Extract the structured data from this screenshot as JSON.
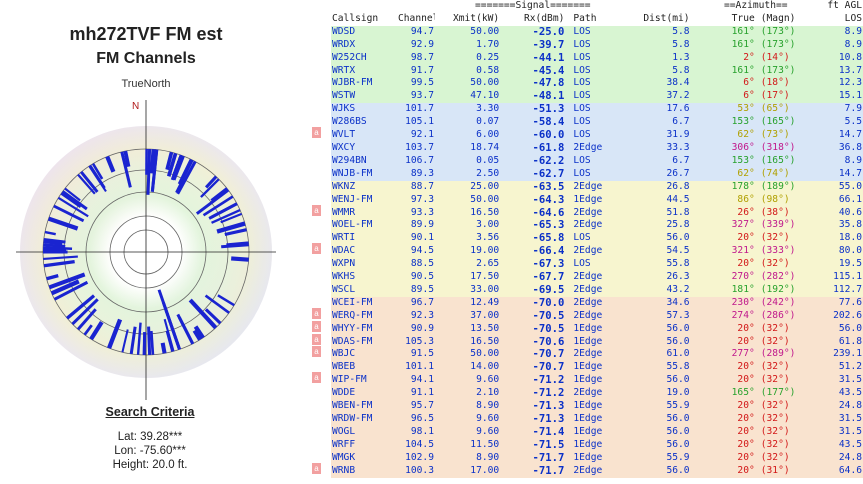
{
  "header": {
    "title": "mh272TVF FM est",
    "subtitle": "FM Channels",
    "plot_caption": "TrueNorth",
    "north_label": "N"
  },
  "search_criteria": {
    "title": "Search Criteria",
    "lat": "Lat: 39.28***",
    "lon": "Lon: -75.60***",
    "height": "Height: 20.0 ft."
  },
  "colors": {
    "call_blue": "#0b31c8",
    "band_green": "#d8f5d2",
    "band_blue": "#d8e6f7",
    "band_yellow": "#f7f5cf",
    "band_orange": "#f9e3cf",
    "marker_red": "#f2a0a0",
    "spoke_blue": "#1a24d0"
  },
  "table": {
    "group_headers": {
      "signal": "=======Signal=======",
      "azimuth": "==Azimuth==",
      "ftagl": "ft AGL"
    },
    "columns": {
      "callsign": "Callsign",
      "channel": "Channel",
      "xmit": "Xmit(kW)",
      "rx": "Rx(dBm)",
      "path": "Path",
      "dist": "Dist(mi)",
      "true": "True",
      "magn": "(Magn)",
      "los": "LOS"
    },
    "rows": [
      {
        "callsign": "WDSD",
        "channel": "94.7",
        "xmit": "50.00",
        "rx": "-25.0",
        "path": "LOS",
        "dist": "5.8",
        "true": "161°",
        "magn": "(173°)",
        "los": "8.9",
        "band": "green",
        "az": "green",
        "marker": false
      },
      {
        "callsign": "WRDX",
        "channel": "92.9",
        "xmit": "1.70",
        "rx": "-39.7",
        "path": "LOS",
        "dist": "5.8",
        "true": "161°",
        "magn": "(173°)",
        "los": "8.9",
        "band": "green",
        "az": "green",
        "marker": false
      },
      {
        "callsign": "W252CH",
        "channel": "98.7",
        "xmit": "0.25",
        "rx": "-44.1",
        "path": "LOS",
        "dist": "1.3",
        "true": "2°",
        "magn": "(14°)",
        "los": "10.8",
        "band": "green",
        "az": "red",
        "marker": false
      },
      {
        "callsign": "WRTX",
        "channel": "91.7",
        "xmit": "0.58",
        "rx": "-45.4",
        "path": "LOS",
        "dist": "5.8",
        "true": "161°",
        "magn": "(173°)",
        "los": "13.7",
        "band": "green",
        "az": "green",
        "marker": false
      },
      {
        "callsign": "WJBR-FM",
        "channel": "99.5",
        "xmit": "50.00",
        "rx": "-47.8",
        "path": "LOS",
        "dist": "38.4",
        "true": "6°",
        "magn": "(18°)",
        "los": "12.3",
        "band": "green",
        "az": "red",
        "marker": false
      },
      {
        "callsign": "WSTW",
        "channel": "93.7",
        "xmit": "47.10",
        "rx": "-48.1",
        "path": "LOS",
        "dist": "37.2",
        "true": "6°",
        "magn": "(17°)",
        "los": "15.1",
        "band": "green",
        "az": "red",
        "marker": false
      },
      {
        "callsign": "WJKS",
        "channel": "101.7",
        "xmit": "3.30",
        "rx": "-51.3",
        "path": "LOS",
        "dist": "17.6",
        "true": "53°",
        "magn": "(65°)",
        "los": "7.9",
        "band": "blue",
        "az": "yellow",
        "marker": false
      },
      {
        "callsign": "W286BS",
        "channel": "105.1",
        "xmit": "0.07",
        "rx": "-58.4",
        "path": "LOS",
        "dist": "6.7",
        "true": "153°",
        "magn": "(165°)",
        "los": "5.5",
        "band": "blue",
        "az": "green",
        "marker": false
      },
      {
        "callsign": "WVLT",
        "channel": "92.1",
        "xmit": "6.00",
        "rx": "-60.0",
        "path": "LOS",
        "dist": "31.9",
        "true": "62°",
        "magn": "(73°)",
        "los": "14.7",
        "band": "blue",
        "az": "yellow",
        "marker": true
      },
      {
        "callsign": "WXCY",
        "channel": "103.7",
        "xmit": "18.74",
        "rx": "-61.8",
        "path": "2Edge",
        "dist": "33.3",
        "true": "306°",
        "magn": "(318°)",
        "los": "36.8",
        "band": "blue",
        "az": "magenta",
        "marker": false
      },
      {
        "callsign": "W294BN",
        "channel": "106.7",
        "xmit": "0.05",
        "rx": "-62.2",
        "path": "LOS",
        "dist": "6.7",
        "true": "153°",
        "magn": "(165°)",
        "los": "8.9",
        "band": "blue",
        "az": "green",
        "marker": false
      },
      {
        "callsign": "WNJB-FM",
        "channel": "89.3",
        "xmit": "2.50",
        "rx": "-62.7",
        "path": "LOS",
        "dist": "26.7",
        "true": "62°",
        "magn": "(74°)",
        "los": "14.7",
        "band": "blue",
        "az": "yellow",
        "marker": false
      },
      {
        "callsign": "WKNZ",
        "channel": "88.7",
        "xmit": "25.00",
        "rx": "-63.5",
        "path": "2Edge",
        "dist": "26.8",
        "true": "178°",
        "magn": "(189°)",
        "los": "55.0",
        "band": "yellow",
        "az": "green",
        "marker": false
      },
      {
        "callsign": "WENJ-FM",
        "channel": "97.3",
        "xmit": "50.00",
        "rx": "-64.3",
        "path": "1Edge",
        "dist": "44.5",
        "true": "86°",
        "magn": "(98°)",
        "los": "66.1",
        "band": "yellow",
        "az": "yellow",
        "marker": false
      },
      {
        "callsign": "WMMR",
        "channel": "93.3",
        "xmit": "16.50",
        "rx": "-64.6",
        "path": "2Edge",
        "dist": "51.8",
        "true": "26°",
        "magn": "(38°)",
        "los": "40.6",
        "band": "yellow",
        "az": "red",
        "marker": true
      },
      {
        "callsign": "WOEL-FM",
        "channel": "89.9",
        "xmit": "3.00",
        "rx": "-65.3",
        "path": "2Edge",
        "dist": "25.8",
        "true": "327°",
        "magn": "(339°)",
        "los": "35.8",
        "band": "yellow",
        "az": "magenta",
        "marker": false
      },
      {
        "callsign": "WRTI",
        "channel": "90.1",
        "xmit": "3.56",
        "rx": "-65.8",
        "path": "LOS",
        "dist": "56.0",
        "true": "20°",
        "magn": "(32°)",
        "los": "18.0",
        "band": "yellow",
        "az": "red",
        "marker": false
      },
      {
        "callsign": "WDAC",
        "channel": "94.5",
        "xmit": "19.00",
        "rx": "-66.4",
        "path": "2Edge",
        "dist": "54.5",
        "true": "321°",
        "magn": "(333°)",
        "los": "80.0",
        "band": "yellow",
        "az": "magenta",
        "marker": true
      },
      {
        "callsign": "WXPN",
        "channel": "88.5",
        "xmit": "2.65",
        "rx": "-67.3",
        "path": "LOS",
        "dist": "55.8",
        "true": "20°",
        "magn": "(32°)",
        "los": "19.5",
        "band": "yellow",
        "az": "red",
        "marker": false
      },
      {
        "callsign": "WKHS",
        "channel": "90.5",
        "xmit": "17.50",
        "rx": "-67.7",
        "path": "2Edge",
        "dist": "26.3",
        "true": "270°",
        "magn": "(282°)",
        "los": "115.1",
        "band": "yellow",
        "az": "magenta",
        "marker": false
      },
      {
        "callsign": "WSCL",
        "channel": "89.5",
        "xmit": "33.00",
        "rx": "-69.5",
        "path": "2Edge",
        "dist": "43.2",
        "true": "181°",
        "magn": "(192°)",
        "los": "112.7",
        "band": "yellow",
        "az": "green",
        "marker": false
      },
      {
        "callsign": "WCEI-FM",
        "channel": "96.7",
        "xmit": "12.49",
        "rx": "-70.0",
        "path": "2Edge",
        "dist": "34.6",
        "true": "230°",
        "magn": "(242°)",
        "los": "77.6",
        "band": "orange",
        "az": "magenta",
        "marker": false
      },
      {
        "callsign": "WERQ-FM",
        "channel": "92.3",
        "xmit": "37.00",
        "rx": "-70.5",
        "path": "2Edge",
        "dist": "57.3",
        "true": "274°",
        "magn": "(286°)",
        "los": "202.6",
        "band": "orange",
        "az": "magenta",
        "marker": true
      },
      {
        "callsign": "WHYY-FM",
        "channel": "90.9",
        "xmit": "13.50",
        "rx": "-70.5",
        "path": "1Edge",
        "dist": "56.0",
        "true": "20°",
        "magn": "(32°)",
        "los": "56.0",
        "band": "orange",
        "az": "red",
        "marker": true
      },
      {
        "callsign": "WDAS-FM",
        "channel": "105.3",
        "xmit": "16.50",
        "rx": "-70.6",
        "path": "1Edge",
        "dist": "56.0",
        "true": "20°",
        "magn": "(32°)",
        "los": "61.8",
        "band": "orange",
        "az": "red",
        "marker": true
      },
      {
        "callsign": "WBJC",
        "channel": "91.5",
        "xmit": "50.00",
        "rx": "-70.7",
        "path": "2Edge",
        "dist": "61.0",
        "true": "277°",
        "magn": "(289°)",
        "los": "239.1",
        "band": "orange",
        "az": "magenta",
        "marker": true
      },
      {
        "callsign": "WBEB",
        "channel": "101.1",
        "xmit": "14.00",
        "rx": "-70.7",
        "path": "1Edge",
        "dist": "55.8",
        "true": "20°",
        "magn": "(32°)",
        "los": "51.2",
        "band": "orange",
        "az": "red",
        "marker": false
      },
      {
        "callsign": "WIP-FM",
        "channel": "94.1",
        "xmit": "9.60",
        "rx": "-71.2",
        "path": "1Edge",
        "dist": "56.0",
        "true": "20°",
        "magn": "(32°)",
        "los": "31.5",
        "band": "orange",
        "az": "red",
        "marker": true
      },
      {
        "callsign": "WDDE",
        "channel": "91.1",
        "xmit": "2.10",
        "rx": "-71.2",
        "path": "2Edge",
        "dist": "19.0",
        "true": "165°",
        "magn": "(177°)",
        "los": "43.5",
        "band": "orange",
        "az": "green",
        "marker": false
      },
      {
        "callsign": "WBEN-FM",
        "channel": "95.7",
        "xmit": "8.90",
        "rx": "-71.3",
        "path": "1Edge",
        "dist": "55.9",
        "true": "20°",
        "magn": "(32°)",
        "los": "24.8",
        "band": "orange",
        "az": "red",
        "marker": false
      },
      {
        "callsign": "WRDW-FM",
        "channel": "96.5",
        "xmit": "9.60",
        "rx": "-71.3",
        "path": "1Edge",
        "dist": "56.0",
        "true": "20°",
        "magn": "(32°)",
        "los": "31.5",
        "band": "orange",
        "az": "red",
        "marker": false
      },
      {
        "callsign": "WOGL",
        "channel": "98.1",
        "xmit": "9.60",
        "rx": "-71.4",
        "path": "1Edge",
        "dist": "56.0",
        "true": "20°",
        "magn": "(32°)",
        "los": "31.5",
        "band": "orange",
        "az": "red",
        "marker": false
      },
      {
        "callsign": "WRFF",
        "channel": "104.5",
        "xmit": "11.50",
        "rx": "-71.5",
        "path": "1Edge",
        "dist": "56.0",
        "true": "20°",
        "magn": "(32°)",
        "los": "43.5",
        "band": "orange",
        "az": "red",
        "marker": false
      },
      {
        "callsign": "WMGK",
        "channel": "102.9",
        "xmit": "8.90",
        "rx": "-71.7",
        "path": "1Edge",
        "dist": "55.9",
        "true": "20°",
        "magn": "(32°)",
        "los": "24.8",
        "band": "orange",
        "az": "red",
        "marker": false
      },
      {
        "callsign": "WRNB",
        "channel": "100.3",
        "xmit": "17.00",
        "rx": "-71.7",
        "path": "2Edge",
        "dist": "56.0",
        "true": "20°",
        "magn": "(31°)",
        "los": "64.6",
        "band": "orange",
        "az": "red",
        "marker": true
      }
    ]
  }
}
